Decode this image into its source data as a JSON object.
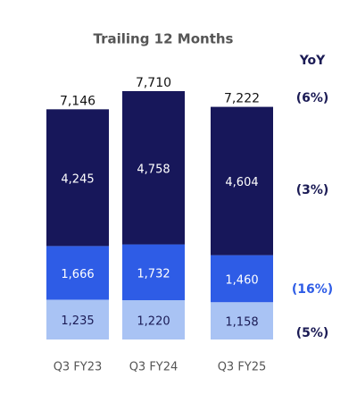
{
  "chart_data": {
    "type": "stacked_bar",
    "title": "Trailing 12 Months",
    "categories": [
      "Q3 FY23",
      "Q3 FY24",
      "Q3 FY25"
    ],
    "series": [
      {
        "color": "#a9c3f4",
        "values": [
          1235,
          1220,
          1158
        ],
        "value_labels": [
          "1,235",
          "1,220",
          "1,158"
        ],
        "label_color": "#1b1b55"
      },
      {
        "color": "#2e5ce6",
        "values": [
          1666,
          1732,
          1460
        ],
        "value_labels": [
          "1,666",
          "1,732",
          "1,460"
        ],
        "label_color": "#ffffff"
      },
      {
        "color": "#17175a",
        "values": [
          4245,
          4758,
          4604
        ],
        "value_labels": [
          "4,245",
          "4,758",
          "4,604"
        ],
        "label_color": "#ffffff"
      }
    ],
    "totals": [
      7146,
      7710,
      7222
    ],
    "total_labels": [
      "7,146",
      "7,710",
      "7,222"
    ],
    "yoy": {
      "title": "YoY",
      "labels": [
        "(6%)",
        "(3%)",
        "(16%)",
        "(5%)"
      ]
    }
  }
}
